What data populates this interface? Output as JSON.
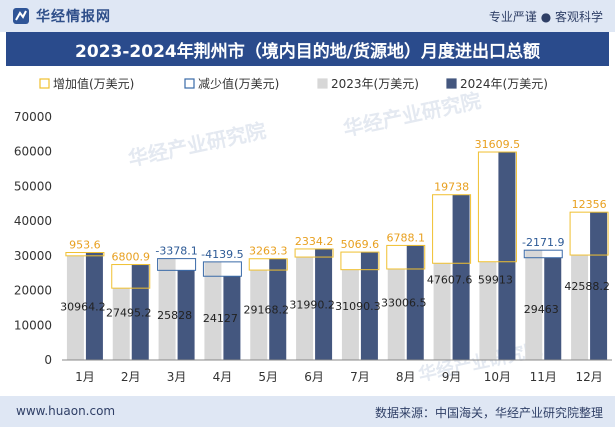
{
  "header": {
    "brand": "华经情报网",
    "slogan": "专业严谨 ● 客观科学"
  },
  "footer": {
    "site": "www.huaon.com",
    "source": "数据来源：中国海关，华经产业研究院整理"
  },
  "colors": {
    "increase": "#f0c030",
    "decrease": "#3a6aa8",
    "y2023": "#d7d7d7",
    "y2024": "#44577f",
    "title_bg": "#2a4b8c",
    "increase_label": "#e8a020",
    "decrease_label": "#2d5a96"
  },
  "chart_data": {
    "type": "bar",
    "title": "2023-2024年荆州市（境内目的地/货源地）月度进出口总额",
    "categories": [
      "1月",
      "2月",
      "3月",
      "4月",
      "5月",
      "6月",
      "7月",
      "8月",
      "9月",
      "10月",
      "11月",
      "12月"
    ],
    "series": [
      {
        "name": "增加值(万美元)",
        "values": [
          953.6,
          6800.9,
          null,
          null,
          3263.3,
          2334.2,
          5069.6,
          6788.1,
          19738,
          31609.5,
          null,
          12356
        ]
      },
      {
        "name": "减少值(万美元)",
        "values": [
          null,
          null,
          -3378.1,
          -4139.5,
          null,
          null,
          null,
          null,
          null,
          null,
          -2171.9,
          null
        ]
      },
      {
        "name": "2023年(万美元)",
        "values": [
          30010.6,
          20694.3,
          29206.1,
          28266.5,
          25904.9,
          29656.0,
          26020.7,
          26218.4,
          27869.6,
          28303.5,
          31634.9,
          30232.2
        ]
      },
      {
        "name": "2024年(万美元)",
        "values": [
          30964.2,
          27495.2,
          25828,
          24127,
          29168.2,
          31990.2,
          31090.3,
          33006.5,
          47607.6,
          59913,
          29463,
          42588.2
        ]
      }
    ],
    "ylim": [
      0,
      70000
    ],
    "yticks": [
      0,
      10000,
      20000,
      30000,
      40000,
      50000,
      60000,
      70000
    ],
    "grid": false,
    "legend_position": "top"
  }
}
